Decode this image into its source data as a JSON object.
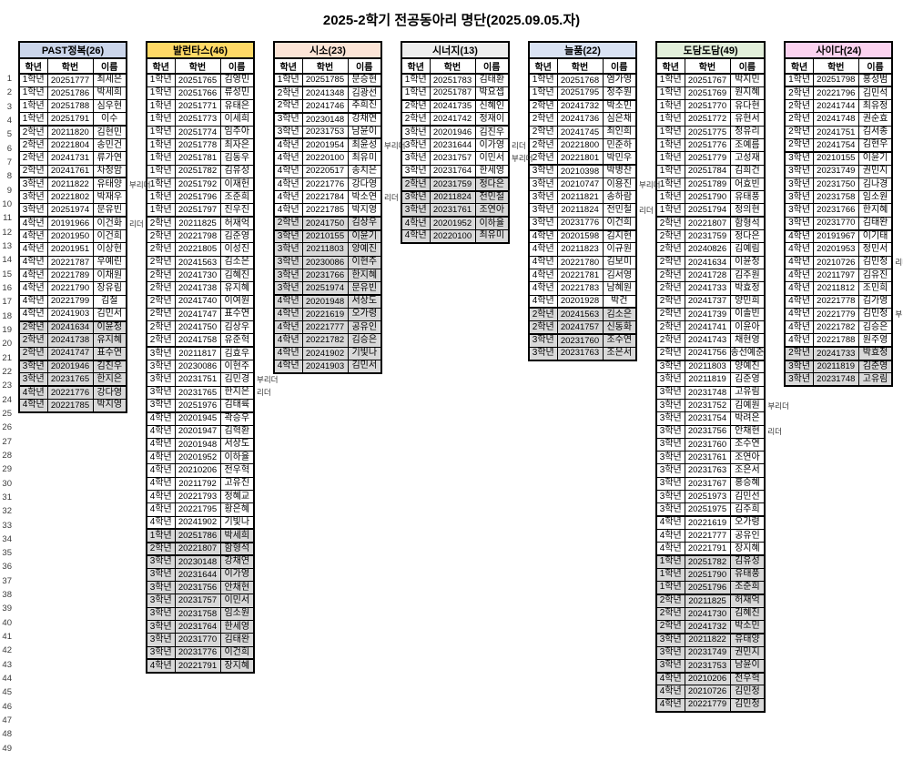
{
  "title": "2025-2학기 전공동아리 명단(2025.09.05.자)",
  "row_count": 49,
  "columns": [
    "학년",
    "학번",
    "이름"
  ],
  "colors": {
    "gray_row": "#D9D9D9",
    "border": "#000000"
  },
  "clubs": [
    {
      "name": "PAST정복(26)",
      "color": "#CBD5EA",
      "gray_from": 20,
      "members": [
        [
          "1학년",
          "20251777",
          "최세은"
        ],
        [
          "1학년",
          "20251786",
          "박세희"
        ],
        [
          "1학년",
          "20251788",
          "심우현"
        ],
        [
          "1학년",
          "20251791",
          "이수"
        ],
        [
          "2학년",
          "20211820",
          "김현민"
        ],
        [
          "2학년",
          "20221804",
          "송민건"
        ],
        [
          "2학년",
          "20241731",
          "류가연"
        ],
        [
          "2학년",
          "20241761",
          "차정암"
        ],
        [
          "3학년",
          "20211822",
          "유태양",
          "부리더"
        ],
        [
          "3학년",
          "20221802",
          "박재우"
        ],
        [
          "3학년",
          "20251974",
          "문유빈"
        ],
        [
          "4학년",
          "20191966",
          "이건화",
          "리더"
        ],
        [
          "4학년",
          "20201950",
          "이건희"
        ],
        [
          "4학년",
          "20201951",
          "이상현"
        ],
        [
          "4학년",
          "20221787",
          "우예린"
        ],
        [
          "4학년",
          "20221789",
          "이채원"
        ],
        [
          "4학년",
          "20221790",
          "장유림"
        ],
        [
          "4학년",
          "20221799",
          "김철"
        ],
        [
          "4학년",
          "20241903",
          "김민서"
        ],
        [
          "2학년",
          "20241634",
          "이윤정"
        ],
        [
          "2학년",
          "20241738",
          "유지혜"
        ],
        [
          "2학년",
          "20241747",
          "표수연"
        ],
        [
          "3학년",
          "20201946",
          "김진우"
        ],
        [
          "3학년",
          "20231765",
          "한지은"
        ],
        [
          "4학년",
          "20221776",
          "강다영"
        ],
        [
          "4학년",
          "20221785",
          "박지영"
        ]
      ]
    },
    {
      "name": "발런타스(46)",
      "color": "#FFD966",
      "gray_from": 36,
      "members": [
        [
          "1학년",
          "20251765",
          "김영민"
        ],
        [
          "1학년",
          "20251766",
          "류성민"
        ],
        [
          "1학년",
          "20251771",
          "유태은"
        ],
        [
          "1학년",
          "20251773",
          "이세희"
        ],
        [
          "1학년",
          "20251774",
          "임주아"
        ],
        [
          "1학년",
          "20251778",
          "최자은"
        ],
        [
          "1학년",
          "20251781",
          "김동우"
        ],
        [
          "1학년",
          "20251782",
          "김유성"
        ],
        [
          "1학년",
          "20251792",
          "이재헌"
        ],
        [
          "1학년",
          "20251796",
          "조준희"
        ],
        [
          "1학년",
          "20251797",
          "진우진"
        ],
        [
          "2학년",
          "20211825",
          "허재억"
        ],
        [
          "2학년",
          "20221798",
          "김준영"
        ],
        [
          "2학년",
          "20221805",
          "이성진"
        ],
        [
          "2학년",
          "20241563",
          "김소은"
        ],
        [
          "2학년",
          "20241730",
          "김혜진"
        ],
        [
          "2학년",
          "20241738",
          "유지혜"
        ],
        [
          "2학년",
          "20241740",
          "이여원"
        ],
        [
          "2학년",
          "20241747",
          "표수연"
        ],
        [
          "2학년",
          "20241750",
          "김상우"
        ],
        [
          "2학년",
          "20241758",
          "유준혁"
        ],
        [
          "3학년",
          "20211817",
          "김효우"
        ],
        [
          "3학년",
          "20230086",
          "이현주"
        ],
        [
          "3학년",
          "20231751",
          "김민경",
          "부리더"
        ],
        [
          "3학년",
          "20231765",
          "한지은",
          "리더"
        ],
        [
          "3학년",
          "20251976",
          "김태륙"
        ],
        [
          "4학년",
          "20201945",
          "곽승우"
        ],
        [
          "4학년",
          "20201947",
          "김혁환"
        ],
        [
          "4학년",
          "20201948",
          "서상도"
        ],
        [
          "4학년",
          "20201952",
          "이하율"
        ],
        [
          "4학년",
          "20210206",
          "전우혁"
        ],
        [
          "4학년",
          "20211792",
          "고유진"
        ],
        [
          "4학년",
          "20221793",
          "정혜교"
        ],
        [
          "4학년",
          "20221795",
          "황은혜"
        ],
        [
          "4학년",
          "20241902",
          "기빛나"
        ],
        [
          "1학년",
          "20251786",
          "박세희"
        ],
        [
          "2학년",
          "20221807",
          "함형석"
        ],
        [
          "3학년",
          "20230148",
          "강채연"
        ],
        [
          "3학년",
          "20231644",
          "이가영"
        ],
        [
          "3학년",
          "20231756",
          "안채현"
        ],
        [
          "3학년",
          "20231757",
          "이민서"
        ],
        [
          "3학년",
          "20231758",
          "임소원"
        ],
        [
          "3학년",
          "20231764",
          "한세영"
        ],
        [
          "3학년",
          "20231770",
          "김태완"
        ],
        [
          "3학년",
          "20231776",
          "이건희"
        ],
        [
          "4학년",
          "20221791",
          "장지혜"
        ]
      ]
    },
    {
      "name": "시소(23)",
      "color": "#FCE4D6",
      "gray_from": 12,
      "members": [
        [
          "1학년",
          "20251785",
          "문승현"
        ],
        [
          "2학년",
          "20241348",
          "김광선"
        ],
        [
          "2학년",
          "20241746",
          "추희진"
        ],
        [
          "3학년",
          "20230148",
          "강채연"
        ],
        [
          "3학년",
          "20231753",
          "남윤이"
        ],
        [
          "4학년",
          "20201954",
          "최윤성",
          "부리더"
        ],
        [
          "4학년",
          "20220100",
          "최유미"
        ],
        [
          "4학년",
          "20220517",
          "송치은"
        ],
        [
          "4학년",
          "20221776",
          "강다영"
        ],
        [
          "4학년",
          "20221784",
          "박소연",
          "리더"
        ],
        [
          "4학년",
          "20221785",
          "박지영"
        ],
        [
          "2학년",
          "20241750",
          "김상우"
        ],
        [
          "3학년",
          "20210155",
          "이윤기"
        ],
        [
          "3학년",
          "20211803",
          "양예진"
        ],
        [
          "3학년",
          "20230086",
          "이현주"
        ],
        [
          "3학년",
          "20231766",
          "한지혜"
        ],
        [
          "3학년",
          "20251974",
          "문유빈"
        ],
        [
          "4학년",
          "20201948",
          "서상도"
        ],
        [
          "4학년",
          "20221619",
          "오가령"
        ],
        [
          "4학년",
          "20221777",
          "공유인"
        ],
        [
          "4학년",
          "20221782",
          "김승은"
        ],
        [
          "4학년",
          "20241902",
          "기빛나"
        ],
        [
          "4학년",
          "20241903",
          "김민서"
        ]
      ]
    },
    {
      "name": "시너지(13)",
      "color": "#EDEDED",
      "gray_from": 9,
      "members": [
        [
          "1학년",
          "20251783",
          "김태환"
        ],
        [
          "1학년",
          "20251787",
          "박요셉"
        ],
        [
          "2학년",
          "20241735",
          "신혜인"
        ],
        [
          "2학년",
          "20241742",
          "정재이"
        ],
        [
          "3학년",
          "20201946",
          "김진우"
        ],
        [
          "3학년",
          "20231644",
          "이가영",
          "리더"
        ],
        [
          "3학년",
          "20231757",
          "이민서",
          "부리더"
        ],
        [
          "3학년",
          "20231764",
          "한세영"
        ],
        [
          "2학년",
          "20231759",
          "정다은"
        ],
        [
          "3학년",
          "20211824",
          "전민철"
        ],
        [
          "3학년",
          "20231761",
          "조연아"
        ],
        [
          "4학년",
          "20201952",
          "이하율"
        ],
        [
          "4학년",
          "20220100",
          "최유미"
        ]
      ]
    },
    {
      "name": "늘품(22)",
      "color": "#D9E2F3",
      "gray_from": 19,
      "members": [
        [
          "1학년",
          "20251768",
          "염가영"
        ],
        [
          "1학년",
          "20251795",
          "정주원"
        ],
        [
          "2학년",
          "20241732",
          "박소민"
        ],
        [
          "2학년",
          "20241736",
          "심은채"
        ],
        [
          "2학년",
          "20241745",
          "최인희"
        ],
        [
          "2학년",
          "20221800",
          "민준하"
        ],
        [
          "2학년",
          "20221801",
          "박민우"
        ],
        [
          "3학년",
          "20210398",
          "박병찬"
        ],
        [
          "3학년",
          "20210747",
          "이용진",
          "부리더"
        ],
        [
          "3학년",
          "20211821",
          "송하람"
        ],
        [
          "3학년",
          "20211824",
          "전민철",
          "리더"
        ],
        [
          "3학년",
          "20231776",
          "이건희"
        ],
        [
          "4학년",
          "20201598",
          "김지현"
        ],
        [
          "4학년",
          "20211823",
          "이규원"
        ],
        [
          "4학년",
          "20221780",
          "김보미"
        ],
        [
          "4학년",
          "20221781",
          "김서영"
        ],
        [
          "4학년",
          "20221783",
          "남혜원"
        ],
        [
          "4학년",
          "20201928",
          "박건"
        ],
        [
          "2학년",
          "20241563",
          "김소은"
        ],
        [
          "2학년",
          "20241757",
          "신동화"
        ],
        [
          "3학년",
          "20231760",
          "조수연"
        ],
        [
          "3학년",
          "20231763",
          "조은서"
        ]
      ]
    },
    {
      "name": "도담도담(49)",
      "color": "#E2EFDA",
      "gray_from": 38,
      "members": [
        [
          "1학년",
          "20251767",
          "박지민"
        ],
        [
          "1학년",
          "20251769",
          "원지혜"
        ],
        [
          "1학년",
          "20251770",
          "유다현"
        ],
        [
          "1학년",
          "20251772",
          "유현서"
        ],
        [
          "1학년",
          "20251775",
          "정유리"
        ],
        [
          "1학년",
          "20251776",
          "조예름"
        ],
        [
          "1학년",
          "20251779",
          "고성재"
        ],
        [
          "1학년",
          "20251784",
          "김희건"
        ],
        [
          "1학년",
          "20251789",
          "어효빈"
        ],
        [
          "1학년",
          "20251790",
          "유태풍"
        ],
        [
          "1학년",
          "20251794",
          "정의현"
        ],
        [
          "2학년",
          "20221807",
          "함형석"
        ],
        [
          "2학년",
          "20231759",
          "정다은"
        ],
        [
          "2학년",
          "20240826",
          "김예림"
        ],
        [
          "2학년",
          "20241634",
          "이윤정"
        ],
        [
          "2학년",
          "20241728",
          "김주원"
        ],
        [
          "2학년",
          "20241733",
          "박효정"
        ],
        [
          "2학년",
          "20241737",
          "양민희"
        ],
        [
          "2학년",
          "20241739",
          "이솔빈"
        ],
        [
          "2학년",
          "20241741",
          "이윤아"
        ],
        [
          "2학년",
          "20241743",
          "채현영"
        ],
        [
          "2학년",
          "20241756",
          "송선예준"
        ],
        [
          "3학년",
          "20211803",
          "양예진"
        ],
        [
          "3학년",
          "20211819",
          "김준영"
        ],
        [
          "3학년",
          "20231748",
          "고유림"
        ],
        [
          "3학년",
          "20231752",
          "김예원",
          "부리더"
        ],
        [
          "3학년",
          "20231754",
          "박려은"
        ],
        [
          "3학년",
          "20231756",
          "안채현",
          "리더"
        ],
        [
          "3학년",
          "20231760",
          "조수연"
        ],
        [
          "3학년",
          "20231761",
          "조연아"
        ],
        [
          "3학년",
          "20231763",
          "조은서"
        ],
        [
          "3학년",
          "20231767",
          "홍승혜"
        ],
        [
          "3학년",
          "20251973",
          "김민선"
        ],
        [
          "3학년",
          "20251975",
          "김주희"
        ],
        [
          "4학년",
          "20221619",
          "오가령"
        ],
        [
          "4학년",
          "20221777",
          "공유인"
        ],
        [
          "4학년",
          "20221791",
          "장지혜"
        ],
        [
          "1학년",
          "20251782",
          "김유성"
        ],
        [
          "1학년",
          "20251790",
          "유태풍"
        ],
        [
          "1학년",
          "20251796",
          "조준희"
        ],
        [
          "2학년",
          "20211825",
          "허재억"
        ],
        [
          "2학년",
          "20241730",
          "김혜진"
        ],
        [
          "2학년",
          "20241732",
          "박소민"
        ],
        [
          "3학년",
          "20211822",
          "유태양"
        ],
        [
          "3학년",
          "20231749",
          "권민지"
        ],
        [
          "3학년",
          "20231753",
          "남윤이"
        ],
        [
          "4학년",
          "20210206",
          "전우혁"
        ],
        [
          "4학년",
          "20210726",
          "김민정"
        ],
        [
          "4학년",
          "20221779",
          "김민정"
        ]
      ]
    },
    {
      "name": "사이다(24)",
      "color": "#FBD2EF",
      "gray_from": 22,
      "members": [
        [
          "1학년",
          "20251798",
          "홍성범"
        ],
        [
          "2학년",
          "20221796",
          "김민석"
        ],
        [
          "2학년",
          "20241744",
          "최유정"
        ],
        [
          "2학년",
          "20241748",
          "권순효"
        ],
        [
          "2학년",
          "20241751",
          "김서종"
        ],
        [
          "2학년",
          "20241754",
          "김현우"
        ],
        [
          "3학년",
          "20210155",
          "이윤기"
        ],
        [
          "3학년",
          "20231749",
          "권민지"
        ],
        [
          "3학년",
          "20231750",
          "김나경"
        ],
        [
          "3학년",
          "20231758",
          "임소원"
        ],
        [
          "3학년",
          "20231766",
          "한지혜"
        ],
        [
          "3학년",
          "20231770",
          "김태완"
        ],
        [
          "4학년",
          "20191967",
          "이기태"
        ],
        [
          "4학년",
          "20201953",
          "정민서"
        ],
        [
          "4학년",
          "20210726",
          "김민정",
          "리더"
        ],
        [
          "4학년",
          "20211797",
          "김유진"
        ],
        [
          "4학년",
          "20211812",
          "조민희"
        ],
        [
          "4학년",
          "20221778",
          "김가영"
        ],
        [
          "4학년",
          "20221779",
          "김민정",
          "부리더"
        ],
        [
          "4학년",
          "20221782",
          "김승은"
        ],
        [
          "4학년",
          "20221788",
          "원주영"
        ],
        [
          "2학년",
          "20241733",
          "박효정"
        ],
        [
          "3학년",
          "20211819",
          "김준영"
        ],
        [
          "3학년",
          "20231748",
          "고유림"
        ]
      ]
    }
  ]
}
